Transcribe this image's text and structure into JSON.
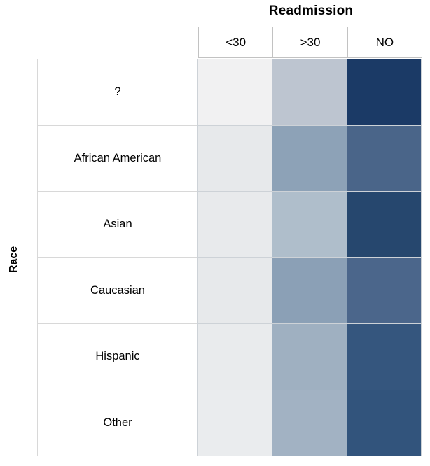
{
  "title": "Readmission",
  "y_axis_title": "Race",
  "chart_data": {
    "type": "heatmap",
    "title": "Readmission",
    "xlabel": "Readmission",
    "ylabel": "Race",
    "x_categories": [
      "<30",
      ">30",
      "NO"
    ],
    "y_categories": [
      "?",
      "African American",
      "Asian",
      "Caucasian",
      "Hispanic",
      "Other"
    ],
    "legend": "none",
    "value_labels_shown": false,
    "encoding": "cell color darkness encodes count (no numeric labels or color legend shown)",
    "cell_colors": [
      [
        "#f1f1f2",
        "#bdc5d0",
        "#1b3a66"
      ],
      [
        "#e7e9eb",
        "#8da2b7",
        "#4a6589"
      ],
      [
        "#e8eaec",
        "#afbecb",
        "#26476e"
      ],
      [
        "#e7e9eb",
        "#8ba0b6",
        "#4b668b"
      ],
      [
        "#e9ebed",
        "#9fb0c1",
        "#35567e"
      ],
      [
        "#eaecee",
        "#a2b2c3",
        "#32547c"
      ]
    ]
  }
}
